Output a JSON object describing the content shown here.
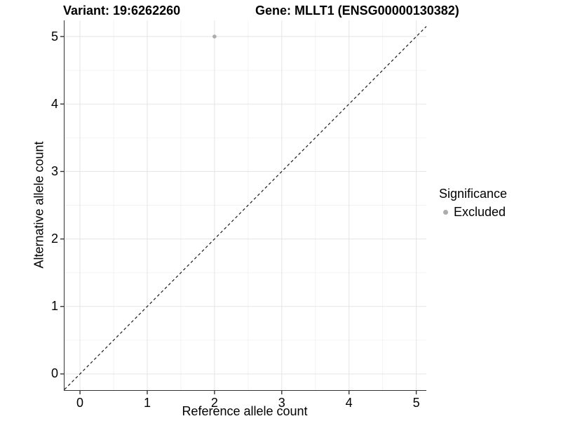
{
  "titles": {
    "variant": "Variant: 19:6262260",
    "gene": "Gene: MLLT1 (ENSG00000130382)"
  },
  "axes": {
    "x_label": "Reference allele count",
    "y_label": "Alternative allele count"
  },
  "legend": {
    "title": "Significance",
    "items": [
      {
        "label": "Excluded",
        "color": "#adadad"
      }
    ]
  },
  "colors": {
    "background": "#ffffff",
    "axis_line": "#333333",
    "tick_mark": "#333333",
    "grid_major": "#e7e7e7",
    "grid_minor": "#f2f2f2",
    "identity_line": "#1a1a1a",
    "point": "#adadad"
  },
  "chart_data": {
    "type": "scatter",
    "title": "Variant: 19:6262260   Gene: MLLT1 (ENSG00000130382)",
    "xlabel": "Reference allele count",
    "ylabel": "Alternative allele count",
    "x_ticks": [
      0,
      1,
      2,
      3,
      4,
      5
    ],
    "y_ticks": [
      0,
      1,
      2,
      3,
      4,
      5
    ],
    "xlim": [
      -0.23,
      5.15
    ],
    "ylim": [
      -0.24,
      5.24
    ],
    "grid": true,
    "legend_position": "right",
    "series": [
      {
        "name": "Excluded",
        "color": "#adadad",
        "points": [
          {
            "x": 2,
            "y": 5
          }
        ]
      }
    ],
    "reference_line": {
      "type": "identity",
      "slope": 1,
      "intercept": 0,
      "style": "dashed",
      "color": "#1a1a1a"
    }
  }
}
